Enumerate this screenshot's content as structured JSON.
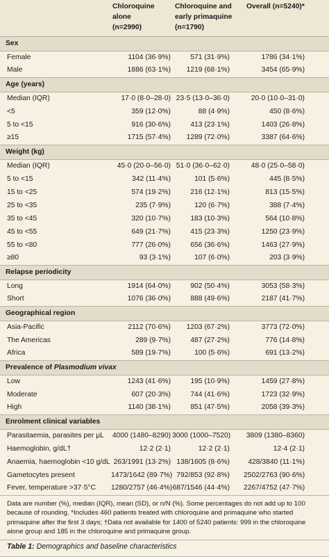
{
  "headers": [
    "",
    "Chloroquine alone\n(n=2990)",
    "Chloroquine and\nearly primaquine\n(n=1790)",
    "Overall (n=5240)*"
  ],
  "sections": [
    {
      "title": "Sex",
      "rows": [
        {
          "label": "Female",
          "c1": "1104 (36·9%)",
          "c2": "571 (31·9%)",
          "c3": "1786 (34·1%)"
        },
        {
          "label": "Male",
          "c1": "1886 (63·1%)",
          "c2": "1219 (68·1%)",
          "c3": "3454 (65·9%)"
        }
      ]
    },
    {
      "title": "Age (years)",
      "rows": [
        {
          "label": "Median (IQR)",
          "c1": "17·0 (8·0–28·0)",
          "c2": "23·5 (13·0–36·0)",
          "c3": "20·0 (10·0–31·0)"
        },
        {
          "label": "<5",
          "c1": "359 (12·0%)",
          "c2": "88 (4·9%)",
          "c3": "450 (8·6%)"
        },
        {
          "label": "5 to <15",
          "c1": "916 (30·6%)",
          "c2": "413 (23·1%)",
          "c3": "1403 (26·8%)"
        },
        {
          "label": "≥15",
          "c1": "1715 (57·4%)",
          "c2": "1289 (72·0%)",
          "c3": "3387 (64·6%)"
        }
      ]
    },
    {
      "title": "Weight (kg)",
      "rows": [
        {
          "label": "Median (IQR)",
          "c1": "45·0 (20·0–56·0)",
          "c2": "51·0 (36·0–62·0)",
          "c3": "48·0 (25·0–58·0)"
        },
        {
          "label": "5 to <15",
          "c1": "342 (11·4%)",
          "c2": "101 (5·6%)",
          "c3": "445 (8·5%)"
        },
        {
          "label": "15 to <25",
          "c1": "574 (19·2%)",
          "c2": "216 (12·1%)",
          "c3": "813 (15·5%)"
        },
        {
          "label": "25 to <35",
          "c1": "235 (7·9%)",
          "c2": "120 (6·7%)",
          "c3": "388 (7·4%)"
        },
        {
          "label": "35 to <45",
          "c1": "320 (10·7%)",
          "c2": "183 (10·3%)",
          "c3": "564 (10·8%)"
        },
        {
          "label": "45 to <55",
          "c1": "649 (21·7%)",
          "c2": "415 (23·3%)",
          "c3": "1250 (23·9%)"
        },
        {
          "label": "55 to <80",
          "c1": "777 (26·0%)",
          "c2": "656 (36·6%)",
          "c3": "1463 (27·9%)"
        },
        {
          "label": "≥80",
          "c1": "93 (3·1%)",
          "c2": "107 (6·0%)",
          "c3": "203 (3·9%)"
        }
      ]
    },
    {
      "title": "Relapse periodicity",
      "rows": [
        {
          "label": "Long",
          "c1": "1914 (64·0%)",
          "c2": "902 (50·4%)",
          "c3": "3053 (58·3%)"
        },
        {
          "label": "Short",
          "c1": "1076 (36·0%)",
          "c2": "888 (49·6%)",
          "c3": "2187 (41·7%)"
        }
      ]
    },
    {
      "title": "Geographical region",
      "rows": [
        {
          "label": "Asia-Pacific",
          "c1": "2112 (70·6%)",
          "c2": "1203 (67·2%)",
          "c3": "3773 (72·0%)"
        },
        {
          "label": "The Americas",
          "c1": "289 (9·7%)",
          "c2": "487 (27·2%)",
          "c3": "776 (14·8%)"
        },
        {
          "label": "Africa",
          "c1": "589 (19·7%)",
          "c2": "100 (5·6%)",
          "c3": "691 (13·2%)"
        }
      ]
    },
    {
      "title_prefix": "Prevalence of ",
      "title_italic": "Plasmodium vivax",
      "rows": [
        {
          "label": "Low",
          "c1": "1243 (41·6%)",
          "c2": "195 (10·9%)",
          "c3": "1459 (27·8%)"
        },
        {
          "label": "Moderate",
          "c1": "607 (20·3%)",
          "c2": "744 (41·6%)",
          "c3": "1723 (32·9%)"
        },
        {
          "label": "High",
          "c1": "1140 (38·1%)",
          "c2": "851 (47·5%)",
          "c3": "2058 (39·3%)"
        }
      ]
    },
    {
      "title": "Enrolment clinical variables",
      "rows": [
        {
          "label": "Parasitaemia, parasites per µL",
          "c1": "4000 (1480–8290)",
          "c2": "3000 (1000–7520)",
          "c3": "3809 (1380–8360)"
        },
        {
          "label": "Haemoglobin, g/dL†",
          "c1": "12·2 (2·1)",
          "c2": "12·2 (2·1)",
          "c3": "12·4 (2·1)"
        },
        {
          "label": "Anaemia, haemoglobin <10 g/dL",
          "c1": "263/1991 (13·2%)",
          "c2": "138/1605 (8·6%)",
          "c3": "428/3840 (11·1%)"
        },
        {
          "label": "Gametocytes present",
          "c1": "1473/1642 (89·7%)",
          "c2": "792/853 (92·8%)",
          "c3": "2502/2763 (90·6%)"
        },
        {
          "label": "Fever, temperature >37·5°C",
          "c1": "1280/2757 (46·4%)",
          "c2": "687/1546 (44·4%)",
          "c3": "2267/4752 (47·7%)"
        }
      ]
    }
  ],
  "footnote": "Data are number (%), median (IQR), mean (SD), or n/N (%). Some percentages do not add up to 100 because of rounding. *Includes 460 patients treated with chloroquine and primaquine who started primaquine after the first 3 days; †Data not available for 1400 of 5240 patients: 999 in the chloroquine alone group and 185 in the chloroquine and primaquine group.",
  "caption": {
    "label": "Table 1:",
    "text": "Demographics and baseline characteristics"
  }
}
